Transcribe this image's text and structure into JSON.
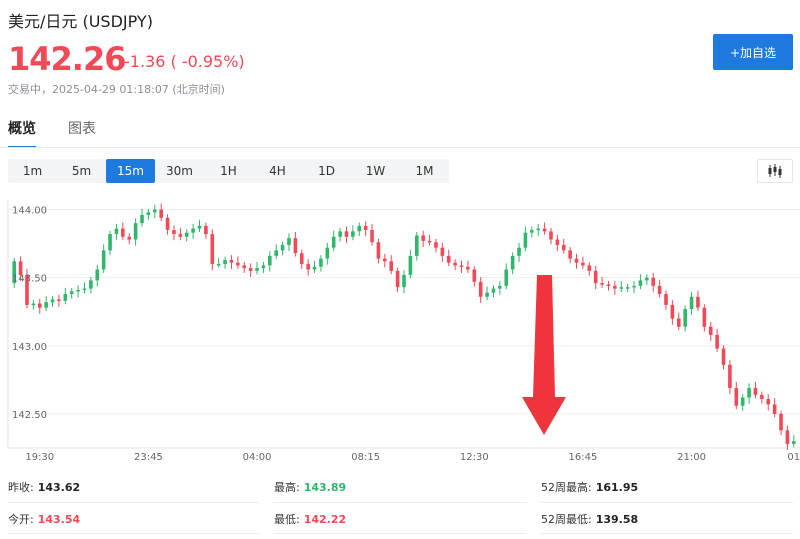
{
  "header": {
    "title": "美元/日元 (USDJPY)",
    "price": "142.26",
    "change": "-1.36 ( -0.95%)",
    "status": "交易中，2025-04-29 01:18:07 (北京时间)",
    "add_button": "+加自选",
    "colors": {
      "down": "#f24957",
      "up": "#2fb86b",
      "accent": "#1f7ae0"
    }
  },
  "tabs": [
    {
      "label": "概览",
      "active": true
    },
    {
      "label": "图表",
      "active": false
    }
  ],
  "intervals": [
    {
      "label": "1m",
      "active": false
    },
    {
      "label": "5m",
      "active": false
    },
    {
      "label": "15m",
      "active": true
    },
    {
      "label": "30m",
      "active": false
    },
    {
      "label": "1H",
      "active": false
    },
    {
      "label": "4H",
      "active": false
    },
    {
      "label": "1D",
      "active": false
    },
    {
      "label": "1W",
      "active": false
    },
    {
      "label": "1M",
      "active": false
    }
  ],
  "chart_type_icon": "candlestick-icon",
  "chart_data": {
    "type": "candlestick",
    "ylim": [
      142.25,
      144.07
    ],
    "y_ticks": [
      144.0,
      143.5,
      143.0,
      142.5
    ],
    "y_tick_labels": [
      "144.00",
      "143.50",
      "143.00",
      "142.50"
    ],
    "x_tick_labels": [
      "19:30",
      "23:45",
      "04:00",
      "08:15",
      "12:30",
      "16:45",
      "21:00",
      "01:..."
    ],
    "x_tick_index": [
      4,
      21,
      38,
      55,
      72,
      89,
      106,
      123
    ],
    "close": [
      143.62,
      143.52,
      143.3,
      143.31,
      143.28,
      143.32,
      143.34,
      143.33,
      143.38,
      143.4,
      143.41,
      143.42,
      143.48,
      143.56,
      143.7,
      143.82,
      143.86,
      143.8,
      143.78,
      143.9,
      143.96,
      143.98,
      144.0,
      143.94,
      143.85,
      143.82,
      143.8,
      143.83,
      143.86,
      143.88,
      143.82,
      143.6,
      143.6,
      143.63,
      143.61,
      143.59,
      143.57,
      143.55,
      143.57,
      143.59,
      143.66,
      143.7,
      143.74,
      143.79,
      143.68,
      143.6,
      143.56,
      143.58,
      143.64,
      143.72,
      143.8,
      143.84,
      143.8,
      143.84,
      143.88,
      143.85,
      143.76,
      143.64,
      143.62,
      143.55,
      143.43,
      143.52,
      143.66,
      143.81,
      143.77,
      143.76,
      143.72,
      143.66,
      143.61,
      143.59,
      143.58,
      143.56,
      143.47,
      143.36,
      143.39,
      143.42,
      143.44,
      143.56,
      143.66,
      143.72,
      143.83,
      143.85,
      143.86,
      143.84,
      143.78,
      143.74,
      143.7,
      143.64,
      143.61,
      143.59,
      143.55,
      143.46,
      143.45,
      143.44,
      143.42,
      143.43,
      143.43,
      143.44,
      143.48,
      143.5,
      143.44,
      143.38,
      143.3,
      143.2,
      143.14,
      143.27,
      143.36,
      143.28,
      143.14,
      143.08,
      142.98,
      142.86,
      142.69,
      142.56,
      142.62,
      142.69,
      142.64,
      142.61,
      142.57,
      142.5,
      142.38,
      142.28,
      142.3
    ],
    "open_first": 143.46
  },
  "stats": [
    {
      "label": "昨收:",
      "value": "143.62",
      "color": "#222222"
    },
    {
      "label": "最高:",
      "value": "143.89",
      "color": "#2fb86b"
    },
    {
      "label": "52周最高:",
      "value": "161.95",
      "color": "#222222"
    },
    {
      "label": "今开:",
      "value": "143.54",
      "color": "#f24957"
    },
    {
      "label": "最低:",
      "value": "142.22",
      "color": "#f24957"
    },
    {
      "label": "52周最低:",
      "value": "139.58",
      "color": "#222222"
    }
  ]
}
